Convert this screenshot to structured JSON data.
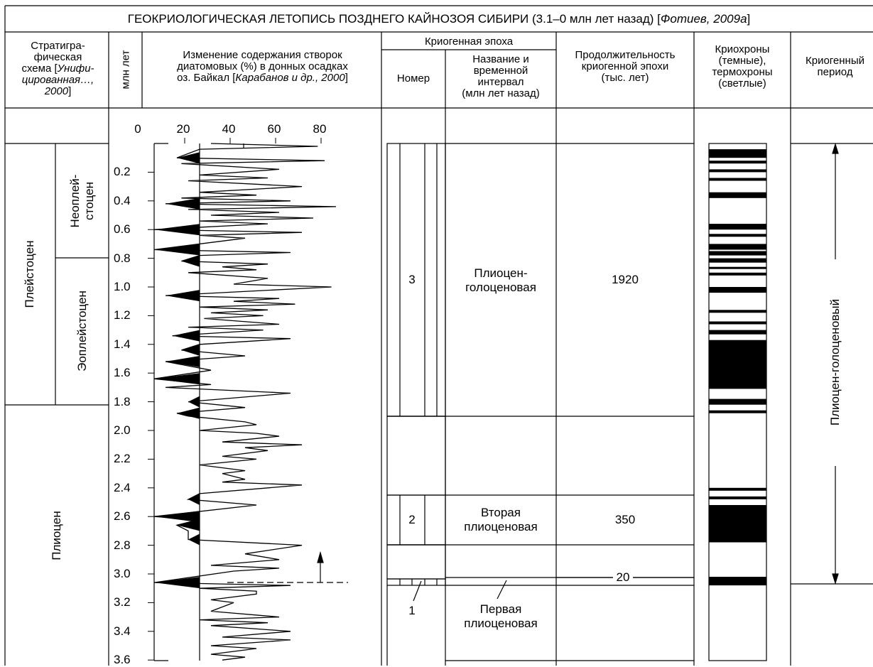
{
  "title_main": "ГЕОКРИОЛОГИЧЕСКАЯ ЛЕТОПИСЬ ПОЗДНЕГО КАЙНОЗОЯ СИБИРИ (3.1–0 млн лет назад) [",
  "title_ref": "Фотиев, 2009а",
  "title_end": "]",
  "headers": {
    "strat_l1": "Стратигра-",
    "strat_l2": "фическая",
    "strat_l3a": "схема [",
    "strat_l3b": "Унифи-",
    "strat_l4": "цированная…,",
    "strat_l5": "2000",
    "strat_l5b": "]",
    "mln": "млн лет",
    "diatom_l1": "Изменение содержания створок",
    "diatom_l2": "диатомовых (%) в донных осадках",
    "diatom_l3a": "оз. Байкал [",
    "diatom_l3b": "Карабанов и др., 2000",
    "diatom_l3c": "]",
    "epoch": "Криогенная эпоха",
    "number": "Номер",
    "name_l1": "Название и",
    "name_l2": "временной",
    "name_l3": "интервал",
    "name_l4": "(млн лет назад)",
    "dur_l1": "Продолжительность",
    "dur_l2": "криогенной эпохи",
    "dur_l3": "(тыс. лет)",
    "chron_l1": "Криохроны",
    "chron_l2": "(темные),",
    "chron_l3": "термохроны",
    "chron_l4": "(светлые)",
    "period_l1": "Криогенный",
    "period_l2": "период"
  },
  "stratigraphy": {
    "pleistocene": "Плейстоцен",
    "neopleistocene_l1": "Неоплей-",
    "neopleistocene_l2": "стоцен",
    "eopleistocene": "Эоплейстоцен",
    "pliocene": "Плиоцен"
  },
  "x_ticks": [
    "0",
    "20",
    "40",
    "60",
    "80"
  ],
  "y_ticks": [
    "0.2",
    "0.4",
    "0.6",
    "0.8",
    "1.0",
    "1.2",
    "1.4",
    "1.6",
    "1.8",
    "2.0",
    "2.2",
    "2.4",
    "2.6",
    "2.8",
    "3.0",
    "3.2",
    "3.4",
    "3.6"
  ],
  "epochs": [
    {
      "number": "3",
      "name_l1": "Плиоцен-",
      "name_l2": "голоценовая",
      "duration": "1920"
    },
    {
      "number": "2",
      "name_l1": "Вторая",
      "name_l2": "плиоценовая",
      "duration": "350"
    },
    {
      "number": "1",
      "name_l1": "Первая",
      "name_l2": "плиоценовая",
      "duration": "20"
    }
  ],
  "period_label": "Плиоцен-голоценовый",
  "chart_data": {
    "type": "line",
    "x_axis": "diatom content (%)",
    "xlim": [
      0,
      80
    ],
    "ylim": [
      0,
      3.6
    ],
    "reference_line_x": 20,
    "series_points": [
      [
        25,
        0.0
      ],
      [
        72,
        0.02
      ],
      [
        20,
        0.04
      ],
      [
        10,
        0.1
      ],
      [
        75,
        0.12
      ],
      [
        12,
        0.14
      ],
      [
        55,
        0.18
      ],
      [
        20,
        0.22
      ],
      [
        50,
        0.24
      ],
      [
        15,
        0.26
      ],
      [
        65,
        0.3
      ],
      [
        20,
        0.34
      ],
      [
        45,
        0.36
      ],
      [
        12,
        0.38
      ],
      [
        60,
        0.4
      ],
      [
        5,
        0.42
      ],
      [
        80,
        0.44
      ],
      [
        15,
        0.46
      ],
      [
        55,
        0.48
      ],
      [
        25,
        0.5
      ],
      [
        70,
        0.52
      ],
      [
        20,
        0.54
      ],
      [
        50,
        0.56
      ],
      [
        0,
        0.6
      ],
      [
        65,
        0.62
      ],
      [
        20,
        0.64
      ],
      [
        40,
        0.66
      ],
      [
        0,
        0.74
      ],
      [
        60,
        0.76
      ],
      [
        20,
        0.78
      ],
      [
        12,
        0.82
      ],
      [
        50,
        0.84
      ],
      [
        30,
        0.86
      ],
      [
        45,
        0.88
      ],
      [
        15,
        0.9
      ],
      [
        50,
        0.94
      ],
      [
        35,
        0.98
      ],
      [
        78,
        1.0
      ],
      [
        5,
        1.06
      ],
      [
        55,
        1.08
      ],
      [
        35,
        1.1
      ],
      [
        62,
        1.12
      ],
      [
        20,
        1.14
      ],
      [
        50,
        1.16
      ],
      [
        25,
        1.18
      ],
      [
        48,
        1.2
      ],
      [
        22,
        1.22
      ],
      [
        55,
        1.26
      ],
      [
        15,
        1.28
      ],
      [
        48,
        1.3
      ],
      [
        8,
        1.34
      ],
      [
        60,
        1.36
      ],
      [
        40,
        1.38
      ],
      [
        20,
        1.4
      ],
      [
        12,
        1.44
      ],
      [
        40,
        1.48
      ],
      [
        5,
        1.52
      ],
      [
        25,
        1.58
      ],
      [
        0,
        1.64
      ],
      [
        25,
        1.68
      ],
      [
        5,
        1.7
      ],
      [
        60,
        1.74
      ],
      [
        15,
        1.8
      ],
      [
        40,
        1.84
      ],
      [
        10,
        1.88
      ],
      [
        15,
        1.9
      ],
      [
        40,
        1.94
      ],
      [
        45,
        1.96
      ],
      [
        20,
        2.0
      ],
      [
        45,
        2.02
      ],
      [
        55,
        2.04
      ],
      [
        30,
        2.08
      ],
      [
        65,
        2.1
      ],
      [
        40,
        2.12
      ],
      [
        50,
        2.14
      ],
      [
        30,
        2.18
      ],
      [
        45,
        2.2
      ],
      [
        20,
        2.24
      ],
      [
        40,
        2.28
      ],
      [
        30,
        2.3
      ],
      [
        40,
        2.34
      ],
      [
        30,
        2.36
      ],
      [
        65,
        2.38
      ],
      [
        20,
        2.44
      ],
      [
        15,
        2.48
      ],
      [
        45,
        2.52
      ],
      [
        0,
        2.6
      ],
      [
        20,
        2.62
      ],
      [
        10,
        2.66
      ],
      [
        15,
        2.7
      ],
      [
        15,
        2.76
      ],
      [
        65,
        2.8
      ],
      [
        40,
        2.86
      ],
      [
        55,
        2.9
      ],
      [
        25,
        2.94
      ],
      [
        55,
        2.96
      ],
      [
        35,
        2.98
      ],
      [
        0,
        3.06
      ],
      [
        60,
        3.08
      ],
      [
        20,
        3.1
      ],
      [
        45,
        3.12
      ],
      [
        45,
        3.14
      ],
      [
        25,
        3.18
      ],
      [
        35,
        3.2
      ],
      [
        25,
        3.26
      ],
      [
        55,
        3.3
      ],
      [
        20,
        3.32
      ],
      [
        50,
        3.34
      ],
      [
        25,
        3.36
      ],
      [
        60,
        3.4
      ],
      [
        30,
        3.44
      ],
      [
        60,
        3.46
      ],
      [
        25,
        3.5
      ],
      [
        45,
        3.52
      ],
      [
        25,
        3.56
      ],
      [
        40,
        3.58
      ],
      [
        30,
        3.6
      ]
    ],
    "dark_fills": [
      [
        10,
        0.1
      ],
      [
        5,
        0.42
      ],
      [
        0,
        0.6
      ],
      [
        0,
        0.74
      ],
      [
        12,
        0.82
      ],
      [
        5,
        1.06
      ],
      [
        8,
        1.34
      ],
      [
        12,
        1.44
      ],
      [
        5,
        1.52
      ],
      [
        0,
        1.64
      ],
      [
        15,
        1.8
      ],
      [
        10,
        1.88
      ],
      [
        15,
        2.48
      ],
      [
        0,
        2.6
      ],
      [
        10,
        2.66
      ],
      [
        15,
        2.76
      ],
      [
        0,
        3.06
      ]
    ],
    "cryochron_dark_ranges": [
      [
        0.04,
        0.1
      ],
      [
        0.12,
        0.14
      ],
      [
        0.18,
        0.2
      ],
      [
        0.24,
        0.26
      ],
      [
        0.34,
        0.38
      ],
      [
        0.56,
        0.6
      ],
      [
        0.63,
        0.65
      ],
      [
        0.7,
        0.74
      ],
      [
        0.75,
        0.78
      ],
      [
        0.8,
        0.83
      ],
      [
        0.86,
        0.87
      ],
      [
        0.9,
        0.92
      ],
      [
        1.0,
        1.04
      ],
      [
        1.16,
        1.18
      ],
      [
        1.24,
        1.26
      ],
      [
        1.3,
        1.33
      ],
      [
        1.37,
        1.71
      ],
      [
        1.78,
        1.82
      ],
      [
        1.86,
        1.88
      ],
      [
        2.4,
        2.42
      ],
      [
        2.46,
        2.48
      ],
      [
        2.52,
        2.78
      ],
      [
        3.02,
        3.08
      ]
    ]
  }
}
